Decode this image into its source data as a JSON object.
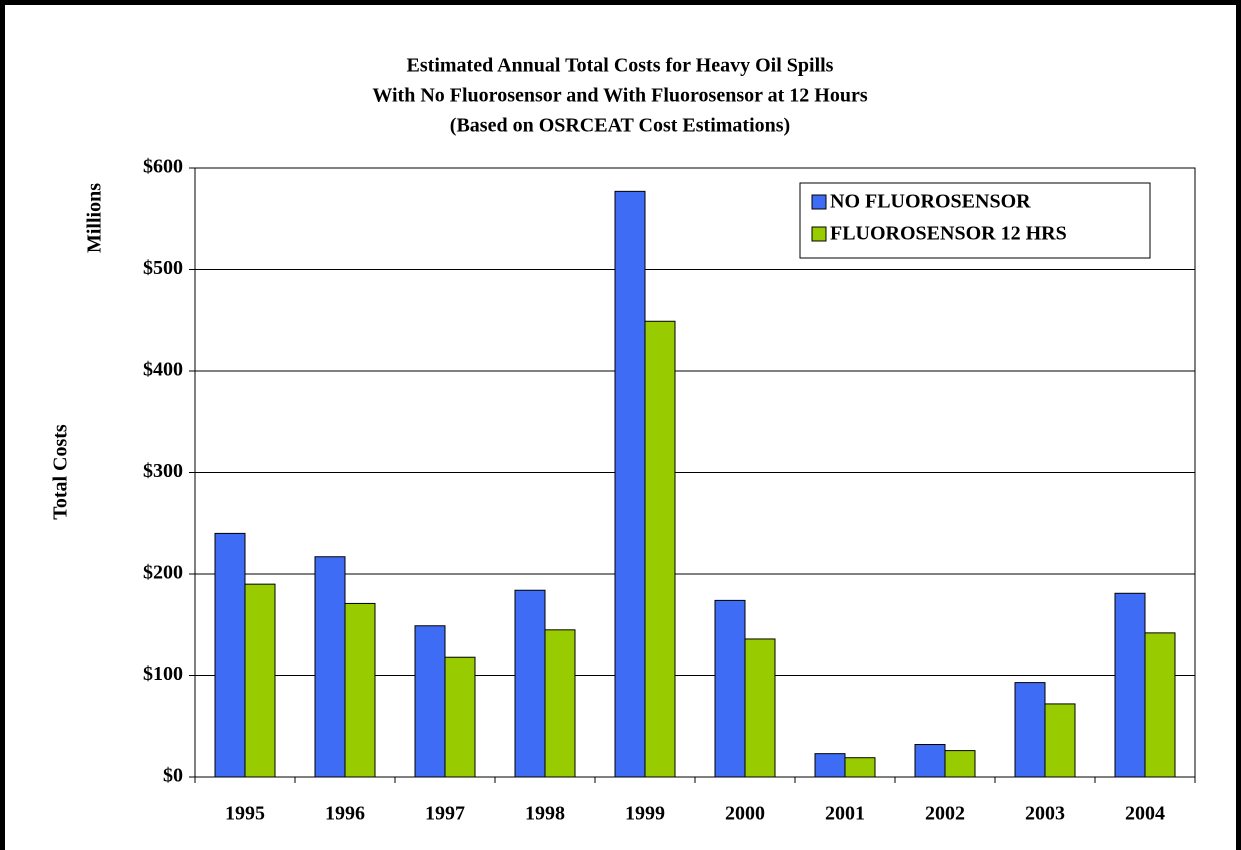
{
  "chart_data": {
    "type": "bar",
    "title": [
      "Estimated Annual Total Costs for Heavy Oil Spills",
      "With No Fluorosensor and With Fluorosensor at 12 Hours",
      "(Based on OSRCEAT Cost Estimations)"
    ],
    "y_label": "Total Costs",
    "y_unit_label": "Millions",
    "categories": [
      "1995",
      "1996",
      "1997",
      "1998",
      "1999",
      "2000",
      "2001",
      "2002",
      "2003",
      "2004"
    ],
    "series": [
      {
        "name": "NO FLUOROSENSOR",
        "color": "#3f6cf5",
        "values": [
          240,
          217,
          149,
          184,
          577,
          174,
          23,
          32,
          93,
          181
        ]
      },
      {
        "name": "FLUOROSENSOR 12 HRS",
        "color": "#99cc00",
        "values": [
          190,
          171,
          118,
          145,
          449,
          136,
          19,
          26,
          72,
          142
        ]
      }
    ],
    "ylim": [
      0,
      600
    ],
    "yticks": [
      {
        "value": 0,
        "label": "$0"
      },
      {
        "value": 100,
        "label": "$100"
      },
      {
        "value": 200,
        "label": "$200"
      },
      {
        "value": 300,
        "label": "$300"
      },
      {
        "value": 400,
        "label": "$400"
      },
      {
        "value": 500,
        "label": "$500"
      },
      {
        "value": 600,
        "label": "$600"
      }
    ],
    "grid": true,
    "legend": "upper right"
  }
}
